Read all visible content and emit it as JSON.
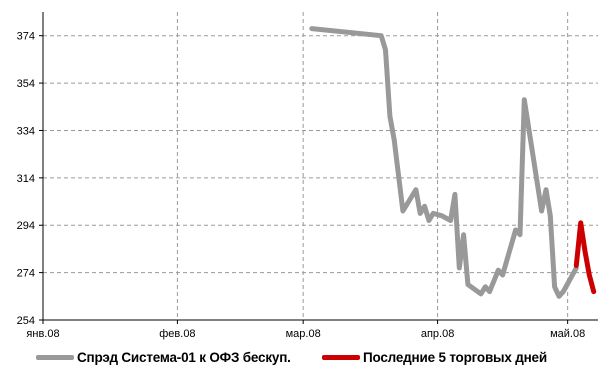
{
  "chart_data": {
    "type": "line",
    "x_tick_labels": [
      "янв.08",
      "фев.08",
      "мар.08",
      "апр.08",
      "май.08"
    ],
    "x_tick_dates": [
      "2008-01-01",
      "2008-02-01",
      "2008-03-01",
      "2008-04-01",
      "2008-05-01"
    ],
    "y_tick_labels": [
      "254",
      "274",
      "294",
      "314",
      "334",
      "354",
      "374"
    ],
    "ylim": [
      254,
      384
    ],
    "xlim": [
      "2008-01-01",
      "2008-05-08"
    ],
    "grid": true,
    "legend_position": "bottom",
    "series": [
      {
        "name": "Спрэд Система-01 к ОФЗ бескуп.",
        "color": "#999999",
        "points": [
          [
            "2008-03-03",
            377
          ],
          [
            "2008-03-19",
            374
          ],
          [
            "2008-03-20",
            368
          ],
          [
            "2008-03-21",
            340
          ],
          [
            "2008-03-22",
            330
          ],
          [
            "2008-03-24",
            300
          ],
          [
            "2008-03-27",
            309
          ],
          [
            "2008-03-28",
            299
          ],
          [
            "2008-03-29",
            302
          ],
          [
            "2008-03-30",
            296
          ],
          [
            "2008-03-31",
            299
          ],
          [
            "2008-04-02",
            298
          ],
          [
            "2008-04-04",
            296
          ],
          [
            "2008-04-05",
            307
          ],
          [
            "2008-04-06",
            276
          ],
          [
            "2008-04-07",
            290
          ],
          [
            "2008-04-08",
            269
          ],
          [
            "2008-04-11",
            265
          ],
          [
            "2008-04-12",
            268
          ],
          [
            "2008-04-13",
            266
          ],
          [
            "2008-04-15",
            275
          ],
          [
            "2008-04-16",
            273
          ],
          [
            "2008-04-19",
            292
          ],
          [
            "2008-04-20",
            290
          ],
          [
            "2008-04-21",
            347
          ],
          [
            "2008-04-25",
            300
          ],
          [
            "2008-04-26",
            309
          ],
          [
            "2008-04-27",
            298
          ],
          [
            "2008-04-28",
            268
          ],
          [
            "2008-04-29",
            264
          ],
          [
            "2008-04-30",
            266
          ],
          [
            "2008-05-03",
            276
          ]
        ]
      },
      {
        "name": "Последние 5 торговых дней",
        "color": "#cc0000",
        "points": [
          [
            "2008-05-03",
            277
          ],
          [
            "2008-05-04",
            295
          ],
          [
            "2008-05-05",
            283
          ],
          [
            "2008-05-06",
            273
          ],
          [
            "2008-05-07",
            266
          ]
        ]
      }
    ]
  }
}
